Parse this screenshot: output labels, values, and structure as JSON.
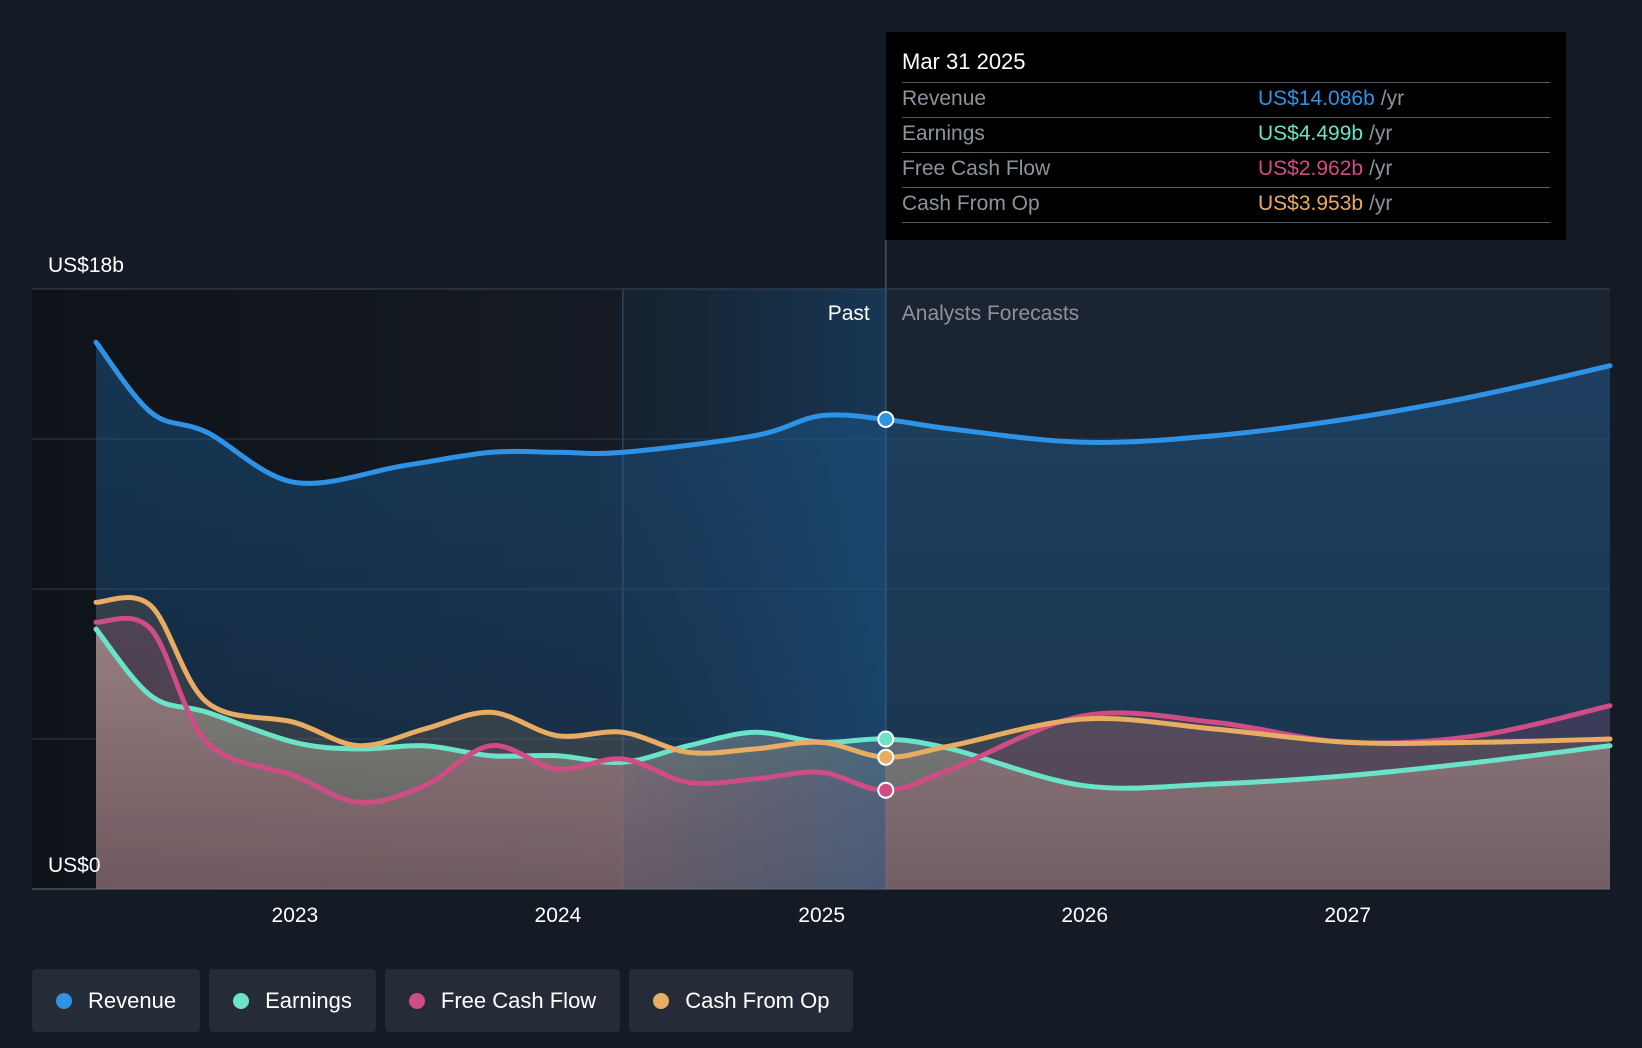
{
  "chart_data": {
    "type": "line",
    "ylabel_top": "US$18b",
    "ylabel_bottom": "US$0",
    "ylim": [
      0,
      18
    ],
    "xlim": [
      "2022-03-31",
      "2027-12-31"
    ],
    "x_ticks": [
      "2023",
      "2024",
      "2025",
      "2026",
      "2027"
    ],
    "grid": true,
    "legend_position": "bottom-left",
    "past_label": "Past",
    "forecast_label": "Analysts Forecasts",
    "divider_date": "2025-03-31",
    "highlight_start": "2024-03-31",
    "series": [
      {
        "name": "Revenue",
        "color": "#2e93e6",
        "points": [
          [
            "2022-03-31",
            16.4
          ],
          [
            "2022-06-15",
            14.3
          ],
          [
            "2022-09-01",
            13.7
          ],
          [
            "2022-12-31",
            12.2
          ],
          [
            "2023-06-01",
            12.7
          ],
          [
            "2023-09-30",
            13.1
          ],
          [
            "2023-12-31",
            13.1
          ],
          [
            "2024-03-31",
            13.1
          ],
          [
            "2024-09-30",
            13.6
          ],
          [
            "2024-12-31",
            14.2
          ],
          [
            "2025-03-31",
            14.086
          ],
          [
            "2025-06-30",
            13.8
          ],
          [
            "2025-12-31",
            13.4
          ],
          [
            "2026-06-30",
            13.6
          ],
          [
            "2026-12-31",
            14.1
          ],
          [
            "2027-06-30",
            14.8
          ],
          [
            "2027-12-31",
            15.7
          ]
        ]
      },
      {
        "name": "Earnings",
        "color": "#6ae3c8",
        "points": [
          [
            "2022-03-31",
            7.8
          ],
          [
            "2022-06-15",
            5.8
          ],
          [
            "2022-09-01",
            5.3
          ],
          [
            "2022-12-31",
            4.4
          ],
          [
            "2023-03-31",
            4.2
          ],
          [
            "2023-06-30",
            4.3
          ],
          [
            "2023-09-30",
            4.0
          ],
          [
            "2023-12-31",
            4.0
          ],
          [
            "2024-03-31",
            3.8
          ],
          [
            "2024-06-30",
            4.3
          ],
          [
            "2024-09-30",
            4.7
          ],
          [
            "2024-12-31",
            4.4
          ],
          [
            "2025-03-31",
            4.499
          ],
          [
            "2025-06-30",
            4.2
          ],
          [
            "2025-12-31",
            3.1
          ],
          [
            "2026-06-30",
            3.15
          ],
          [
            "2026-12-31",
            3.4
          ],
          [
            "2027-06-30",
            3.8
          ],
          [
            "2027-12-31",
            4.3
          ]
        ]
      },
      {
        "name": "Free Cash Flow",
        "color": "#cf4c85",
        "points": [
          [
            "2022-03-31",
            8.0
          ],
          [
            "2022-06-15",
            7.8
          ],
          [
            "2022-09-01",
            4.4
          ],
          [
            "2022-12-31",
            3.4
          ],
          [
            "2023-03-31",
            2.6
          ],
          [
            "2023-06-30",
            3.1
          ],
          [
            "2023-09-30",
            4.3
          ],
          [
            "2023-12-31",
            3.6
          ],
          [
            "2024-03-31",
            3.9
          ],
          [
            "2024-06-30",
            3.2
          ],
          [
            "2024-09-30",
            3.3
          ],
          [
            "2024-12-31",
            3.5
          ],
          [
            "2025-03-31",
            2.962
          ],
          [
            "2025-06-30",
            3.6
          ],
          [
            "2025-12-31",
            5.2
          ],
          [
            "2026-06-30",
            5.0
          ],
          [
            "2026-12-31",
            4.4
          ],
          [
            "2027-06-30",
            4.6
          ],
          [
            "2027-12-31",
            5.5
          ]
        ]
      },
      {
        "name": "Cash From Op",
        "color": "#e8ad63",
        "points": [
          [
            "2022-03-31",
            8.6
          ],
          [
            "2022-06-15",
            8.5
          ],
          [
            "2022-09-01",
            5.6
          ],
          [
            "2022-12-31",
            5.0
          ],
          [
            "2023-03-31",
            4.3
          ],
          [
            "2023-06-30",
            4.8
          ],
          [
            "2023-09-30",
            5.3
          ],
          [
            "2023-12-31",
            4.6
          ],
          [
            "2024-03-31",
            4.7
          ],
          [
            "2024-06-30",
            4.1
          ],
          [
            "2024-09-30",
            4.2
          ],
          [
            "2024-12-31",
            4.4
          ],
          [
            "2025-03-31",
            3.953
          ],
          [
            "2025-06-30",
            4.3
          ],
          [
            "2025-12-31",
            5.1
          ],
          [
            "2026-06-30",
            4.8
          ],
          [
            "2026-12-31",
            4.4
          ],
          [
            "2027-06-30",
            4.4
          ],
          [
            "2027-12-31",
            4.5
          ]
        ]
      }
    ]
  },
  "tooltip": {
    "date": "Mar 31 2025",
    "rows": [
      {
        "label": "Revenue",
        "value": "US$14.086b",
        "unit": "/yr",
        "color": "#2e93e6"
      },
      {
        "label": "Earnings",
        "value": "US$4.499b",
        "unit": "/yr",
        "color": "#6ae3c8"
      },
      {
        "label": "Free Cash Flow",
        "value": "US$2.962b",
        "unit": "/yr",
        "color": "#cf4c85"
      },
      {
        "label": "Cash From Op",
        "value": "US$3.953b",
        "unit": "/yr",
        "color": "#e8ad63"
      }
    ]
  },
  "legend": [
    {
      "label": "Revenue",
      "color": "#2e93e6"
    },
    {
      "label": "Earnings",
      "color": "#6ae3c8"
    },
    {
      "label": "Free Cash Flow",
      "color": "#cf4c85"
    },
    {
      "label": "Cash From Op",
      "color": "#e8ad63"
    }
  ]
}
